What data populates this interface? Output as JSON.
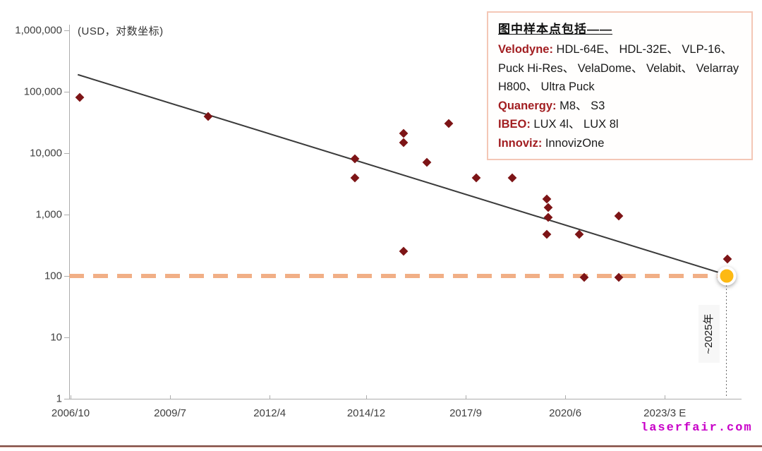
{
  "watermark": "laserfair.com",
  "legend": {
    "title": "图中样本点包括——",
    "brand_color": "#a21e21",
    "separator": "、 ",
    "entries": [
      {
        "brand": "Velodyne",
        "items": [
          "HDL-64E",
          "HDL-32E",
          "VLP-16",
          "Puck Hi-Res",
          "VelaDome",
          "Velabit",
          "Velarray H800",
          "Ultra Puck"
        ]
      },
      {
        "brand": "Quanergy",
        "items": [
          "M8",
          "S3"
        ]
      },
      {
        "brand": "IBEO",
        "items": [
          "LUX 4l",
          "LUX 8l"
        ]
      },
      {
        "brand": "Innoviz",
        "items": [
          "InnovizOne"
        ]
      }
    ]
  },
  "chart_data": {
    "type": "scatter",
    "note": "(USD，对数坐标)",
    "annotation": "~2025年",
    "y_axis": {
      "scale": "log",
      "range": [
        1,
        1000000
      ],
      "ticks": [
        {
          "value": 1,
          "label": "1"
        },
        {
          "value": 10,
          "label": "10"
        },
        {
          "value": 100,
          "label": "100"
        },
        {
          "value": 1000,
          "label": "1,000"
        },
        {
          "value": 10000,
          "label": "10,000"
        },
        {
          "value": 100000,
          "label": "100,000"
        },
        {
          "value": 1000000,
          "label": "1,000,000"
        }
      ]
    },
    "x_axis": {
      "ticks": [
        {
          "year": 2006.75,
          "label": "2006/10"
        },
        {
          "year": 2009.5,
          "label": "2009/7"
        },
        {
          "year": 2012.25,
          "label": "2012/4"
        },
        {
          "year": 2014.917,
          "label": "2014/12"
        },
        {
          "year": 2017.667,
          "label": "2017/9"
        },
        {
          "year": 2020.417,
          "label": "2020/6"
        },
        {
          "year": 2023.167,
          "label": "2023/3 E"
        }
      ]
    },
    "colors": {
      "point": "#7d1416",
      "trend": "#3b3b3b",
      "reference": "#f1af86",
      "highlight": "#fdb913"
    },
    "points": [
      {
        "date": "2007/1",
        "year": 2007.0,
        "usd": 80000
      },
      {
        "date": "2010/7",
        "year": 2010.55,
        "usd": 40000
      },
      {
        "date": "2014/8",
        "year": 2014.6,
        "usd": 8000
      },
      {
        "date": "2014/8",
        "year": 2014.6,
        "usd": 4000
      },
      {
        "date": "2015/12",
        "year": 2015.95,
        "usd": 21000
      },
      {
        "date": "2015/12",
        "year": 2015.95,
        "usd": 15000
      },
      {
        "date": "2015/12",
        "year": 2015.95,
        "usd": 250
      },
      {
        "date": "2016/8",
        "year": 2016.6,
        "usd": 7000
      },
      {
        "date": "2017/3",
        "year": 2017.2,
        "usd": 30000
      },
      {
        "date": "2017/12",
        "year": 2017.95,
        "usd": 4000
      },
      {
        "date": "2018/12",
        "year": 2018.95,
        "usd": 4000
      },
      {
        "date": "2019/11",
        "year": 2019.9,
        "usd": 1800
      },
      {
        "date": "2019/12",
        "year": 2019.95,
        "usd": 1300
      },
      {
        "date": "2019/12",
        "year": 2019.95,
        "usd": 900
      },
      {
        "date": "2019/11",
        "year": 2019.9,
        "usd": 480
      },
      {
        "date": "2020/10",
        "year": 2020.8,
        "usd": 480
      },
      {
        "date": "2020/12",
        "year": 2020.95,
        "usd": 95
      },
      {
        "date": "2021/11",
        "year": 2021.9,
        "usd": 950
      },
      {
        "date": "2021/11",
        "year": 2021.9,
        "usd": 95
      },
      {
        "date": "2024/12",
        "year": 2024.9,
        "usd": 190
      }
    ],
    "trend_line": {
      "x1_year": 2006.95,
      "y1_usd": 190000,
      "x2_year": 2024.7,
      "y2_usd": 112
    },
    "reference_line": {
      "value": 100,
      "style": "dashed"
    },
    "highlight_point": {
      "date": "~2025",
      "year": 2024.87,
      "usd": 100
    }
  }
}
